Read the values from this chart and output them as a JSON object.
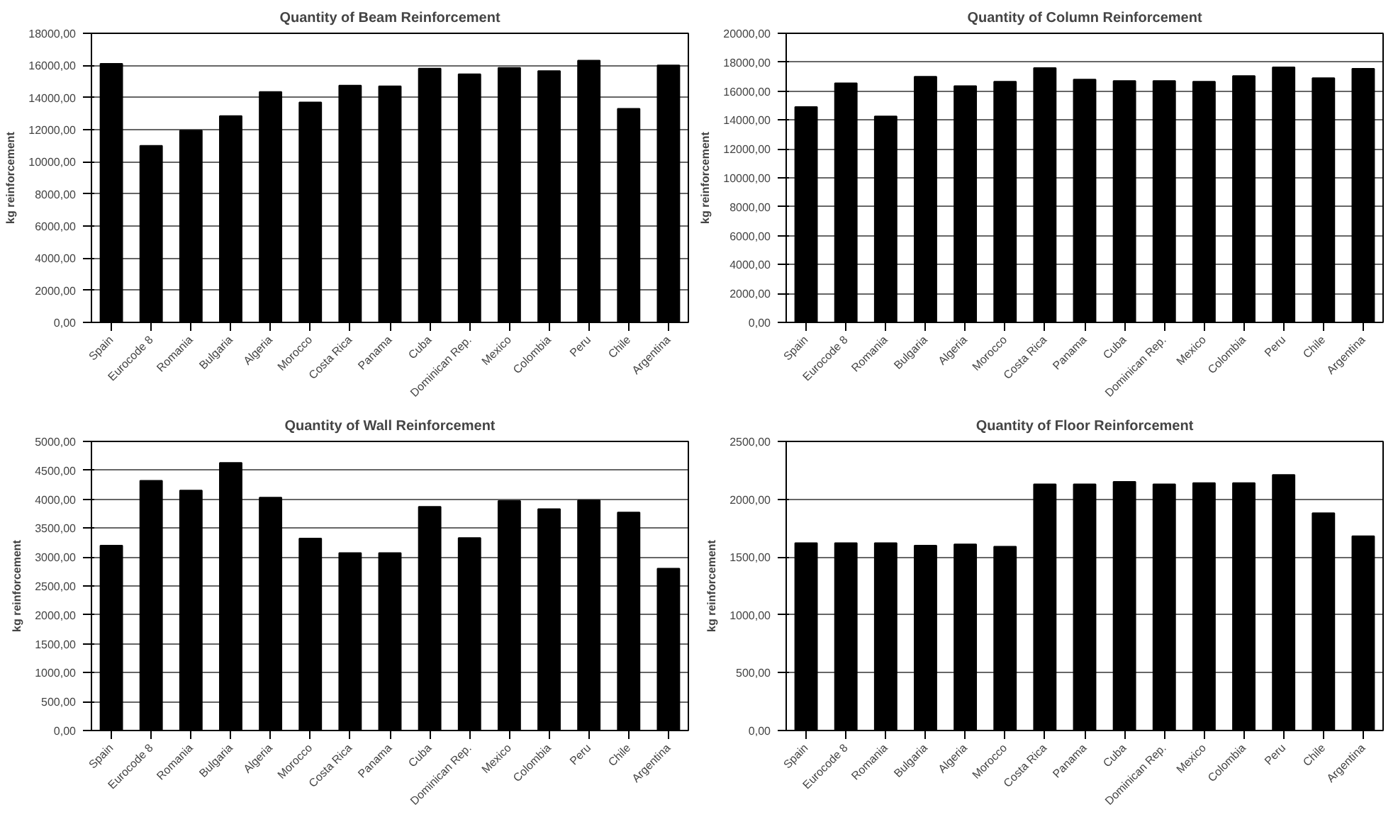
{
  "chart_data": [
    {
      "type": "bar",
      "title": "Quantity of Beam Reinforcement",
      "ylabel": "kg reinforcement",
      "color": "#000000",
      "grid": "y",
      "categories": [
        "Spain",
        "Eurocode 8",
        "Romania",
        "Bulgaria",
        "Algeria",
        "Morocco",
        "Costa Rica",
        "Panama",
        "Cuba",
        "Dominican Rep.",
        "Mexico",
        "Colombia",
        "Peru",
        "Chile",
        "Argentina"
      ],
      "values": [
        16100,
        11000,
        11950,
        12850,
        14350,
        13700,
        14750,
        14700,
        15800,
        15450,
        15850,
        15650,
        16300,
        13300,
        16000
      ],
      "ylim": [
        0,
        18000
      ],
      "yticks": [
        {
          "value": 0,
          "label": "0,00"
        },
        {
          "value": 2000,
          "label": "2000,00"
        },
        {
          "value": 4000,
          "label": "4000,00"
        },
        {
          "value": 6000,
          "label": "6000,00"
        },
        {
          "value": 8000,
          "label": "8000,00"
        },
        {
          "value": 10000,
          "label": "10000,00"
        },
        {
          "value": 12000,
          "label": "12000,00"
        },
        {
          "value": 14000,
          "label": "14000,00"
        },
        {
          "value": 16000,
          "label": "16000,00"
        },
        {
          "value": 18000,
          "label": "18000,00"
        }
      ]
    },
    {
      "type": "bar",
      "title": "Quantity of Column Reinforcement",
      "ylabel": "kg reinforcement",
      "color": "#000000",
      "grid": "y",
      "categories": [
        "Spain",
        "Eurocode 8",
        "Romania",
        "Bulgaria",
        "Algeria",
        "Morocco",
        "Costa Rica",
        "Panama",
        "Cuba",
        "Dominican Rep.",
        "Mexico",
        "Colombia",
        "Peru",
        "Chile",
        "Argentina"
      ],
      "values": [
        14900,
        16550,
        14250,
        17000,
        16350,
        16650,
        17600,
        16800,
        16700,
        16700,
        16650,
        17050,
        17650,
        16900,
        17550
      ],
      "ylim": [
        0,
        20000
      ],
      "yticks": [
        {
          "value": 0,
          "label": "0,00"
        },
        {
          "value": 2000,
          "label": "2000,00"
        },
        {
          "value": 4000,
          "label": "4000,00"
        },
        {
          "value": 6000,
          "label": "6000,00"
        },
        {
          "value": 8000,
          "label": "8000,00"
        },
        {
          "value": 10000,
          "label": "10000,00"
        },
        {
          "value": 12000,
          "label": "12000,00"
        },
        {
          "value": 14000,
          "label": "14000,00"
        },
        {
          "value": 16000,
          "label": "16000,00"
        },
        {
          "value": 18000,
          "label": "18000,00"
        },
        {
          "value": 20000,
          "label": "20000,00"
        }
      ]
    },
    {
      "type": "bar",
      "title": "Quantity of Wall Reinforcement",
      "ylabel": "kg reinforcement",
      "color": "#000000",
      "grid": "y",
      "categories": [
        "Spain",
        "Eurocode 8",
        "Romania",
        "Bulgaria",
        "Algeria",
        "Morocco",
        "Costa Rica",
        "Panama",
        "Cuba",
        "Dominican Rep.",
        "Mexico",
        "Colombia",
        "Peru",
        "Chile",
        "Argentina"
      ],
      "values": [
        3200,
        4320,
        4150,
        4630,
        4030,
        3320,
        3070,
        3070,
        3870,
        3330,
        3970,
        3830,
        3980,
        3770,
        2800
      ],
      "ylim": [
        0,
        5000
      ],
      "yticks": [
        {
          "value": 0,
          "label": "0,00"
        },
        {
          "value": 500,
          "label": "500,00"
        },
        {
          "value": 1000,
          "label": "1000,00"
        },
        {
          "value": 1500,
          "label": "1500,00"
        },
        {
          "value": 2000,
          "label": "2000,00"
        },
        {
          "value": 2500,
          "label": "2500,00"
        },
        {
          "value": 3000,
          "label": "3000,00"
        },
        {
          "value": 3500,
          "label": "3500,00"
        },
        {
          "value": 4000,
          "label": "4000,00"
        },
        {
          "value": 4500,
          "label": "4500,00"
        },
        {
          "value": 5000,
          "label": "5000,00"
        }
      ]
    },
    {
      "type": "bar",
      "title": "Quantity of Floor Reinforcement",
      "ylabel": "kg reinforcement",
      "color": "#000000",
      "grid": "y",
      "categories": [
        "Spain",
        "Eurocode 8",
        "Romania",
        "Bulgaria",
        "Algeria",
        "Morocco",
        "Costa Rica",
        "Panama",
        "Cuba",
        "Dominican Rep.",
        "Mexico",
        "Colombia",
        "Peru",
        "Chile",
        "Argentina"
      ],
      "values": [
        1620,
        1620,
        1620,
        1600,
        1610,
        1590,
        2130,
        2130,
        2150,
        2130,
        2140,
        2140,
        2210,
        1880,
        1680
      ],
      "ylim": [
        0,
        2500
      ],
      "yticks": [
        {
          "value": 0,
          "label": "0,00"
        },
        {
          "value": 500,
          "label": "500,00"
        },
        {
          "value": 1000,
          "label": "1000,00"
        },
        {
          "value": 1500,
          "label": "1500,00"
        },
        {
          "value": 2000,
          "label": "2000,00"
        },
        {
          "value": 2500,
          "label": "2500,00"
        }
      ]
    }
  ]
}
